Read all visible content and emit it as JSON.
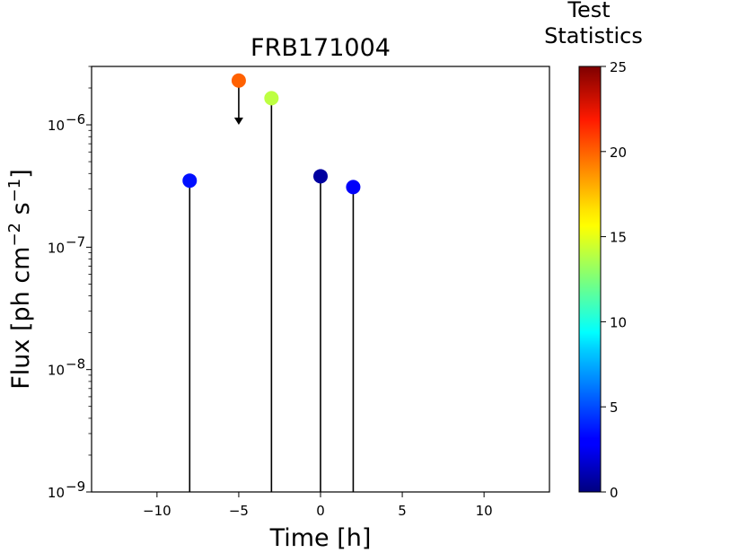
{
  "chart_data": {
    "type": "scatter",
    "title": "FRB171004",
    "xlabel": "Time [h]",
    "ylabel_main": "Flux [ph cm",
    "ylabel_exp1": "−2",
    "ylabel_mid": " s",
    "ylabel_exp2": "−1",
    "ylabel_end": "]",
    "xlim": [
      -14,
      14
    ],
    "ylim": [
      1e-09,
      3e-06
    ],
    "yscale": "log",
    "xticks": [
      -10,
      -5,
      0,
      5,
      10
    ],
    "xtick_labels": [
      "−10",
      "−5",
      "0",
      "5",
      "10"
    ],
    "ytick_exponents": [
      -9,
      -8,
      -7,
      -6
    ],
    "ytick_labels": [
      "10",
      "10",
      "10",
      "10"
    ],
    "ytick_sup": [
      "−9",
      "−8",
      "−7",
      "−6"
    ],
    "points": [
      {
        "x": -8,
        "y": 3.5e-07,
        "ts": 3.5,
        "upper_limit": false
      },
      {
        "x": -5,
        "y": 2.3e-06,
        "ts": 19.5,
        "upper_limit": true
      },
      {
        "x": -3,
        "y": 1.65e-06,
        "ts": 14.0,
        "upper_limit": false
      },
      {
        "x": 0,
        "y": 3.8e-07,
        "ts": 0.8,
        "upper_limit": false
      },
      {
        "x": 2,
        "y": 3.1e-07,
        "ts": 3.0,
        "upper_limit": false
      }
    ],
    "colorbar": {
      "title_line1": "Test",
      "title_line2": "Statistics",
      "range": [
        0,
        25
      ],
      "ticks": [
        0,
        5,
        10,
        15,
        20,
        25
      ],
      "tick_labels": [
        "0",
        "5",
        "10",
        "15",
        "20",
        "25"
      ],
      "colormap": "jet"
    }
  }
}
